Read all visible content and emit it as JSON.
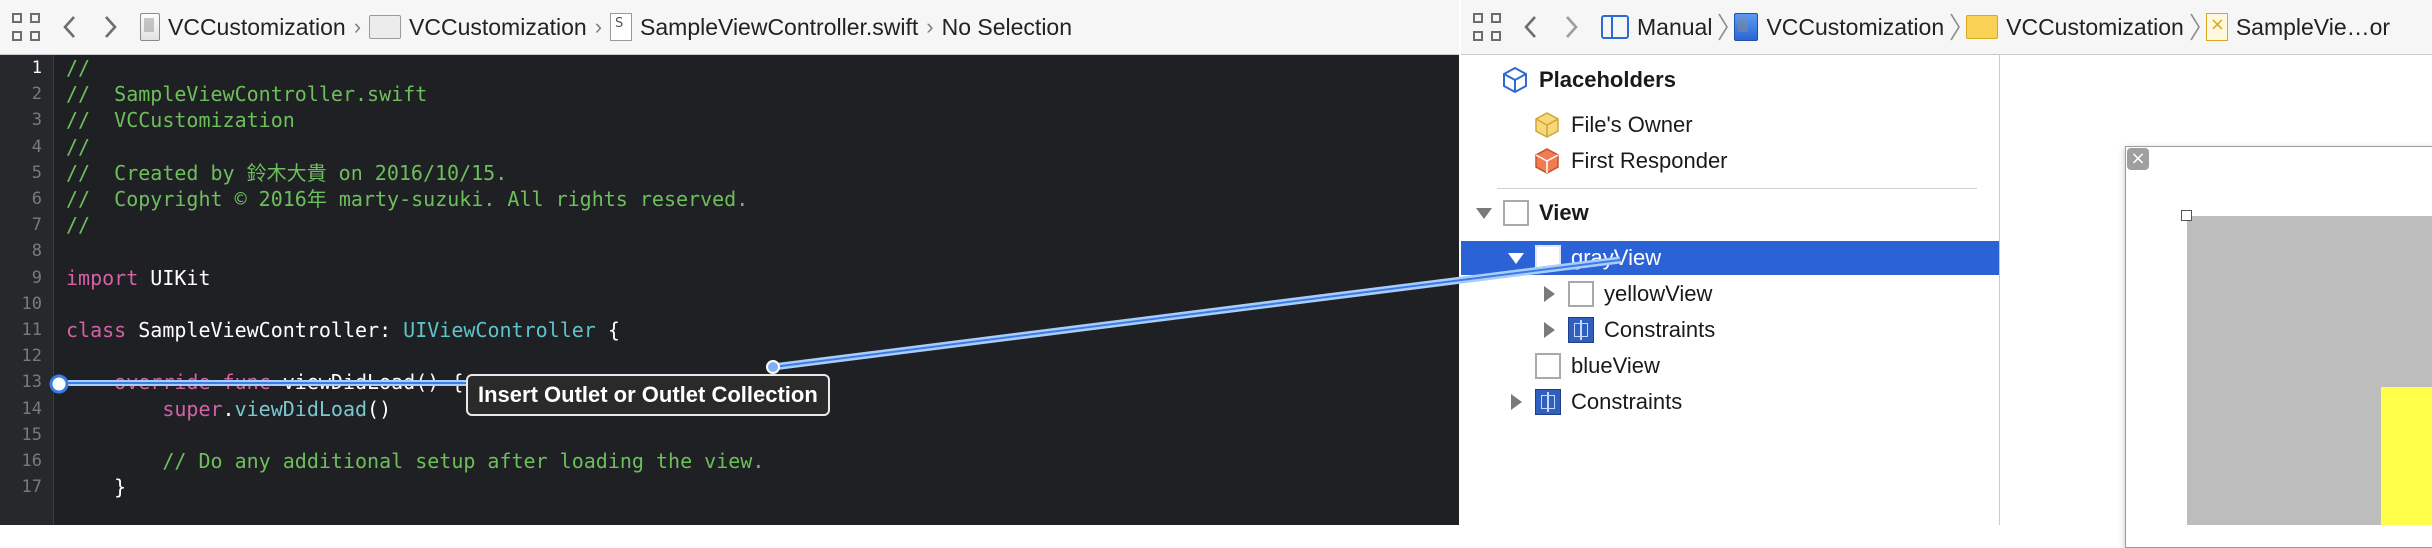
{
  "left_jumpbar": {
    "crumbs": [
      {
        "label": "VCCustomization",
        "icon": "project-icon"
      },
      {
        "label": "VCCustomization",
        "icon": "folder-icon"
      },
      {
        "label": "SampleViewController.swift",
        "icon": "swift-file-icon"
      },
      {
        "label": "No Selection",
        "icon": ""
      }
    ]
  },
  "right_jumpbar": {
    "crumbs": [
      {
        "label": "Manual",
        "icon": "manual-icon"
      },
      {
        "label": "VCCustomization",
        "icon": "project-icon"
      },
      {
        "label": "VCCustomization",
        "icon": "folder-icon"
      },
      {
        "label": "SampleVie…or",
        "icon": "xib-file-icon"
      }
    ]
  },
  "editor": {
    "lines": [
      {
        "n": "1",
        "tokens": [
          {
            "t": "//",
            "c": "comment"
          }
        ]
      },
      {
        "n": "2",
        "tokens": [
          {
            "t": "//  SampleViewController.swift",
            "c": "comment"
          }
        ]
      },
      {
        "n": "3",
        "tokens": [
          {
            "t": "//  VCCustomization",
            "c": "comment"
          }
        ]
      },
      {
        "n": "4",
        "tokens": [
          {
            "t": "//",
            "c": "comment"
          }
        ]
      },
      {
        "n": "5",
        "tokens": [
          {
            "t": "//  Created by 鈴木大貴 on 2016/10/15.",
            "c": "comment"
          }
        ]
      },
      {
        "n": "6",
        "tokens": [
          {
            "t": "//  Copyright © 2016年 marty-suzuki. All rights reserved.",
            "c": "comment"
          }
        ]
      },
      {
        "n": "7",
        "tokens": [
          {
            "t": "//",
            "c": "comment"
          }
        ]
      },
      {
        "n": "8",
        "tokens": []
      },
      {
        "n": "9",
        "tokens": [
          {
            "t": "import",
            "c": "kw"
          },
          {
            "t": " UIKit",
            "c": "plain"
          }
        ]
      },
      {
        "n": "10",
        "tokens": []
      },
      {
        "n": "11",
        "tokens": [
          {
            "t": "class",
            "c": "kw"
          },
          {
            "t": " SampleViewController: ",
            "c": "plain"
          },
          {
            "t": "UIViewController",
            "c": "type"
          },
          {
            "t": " {",
            "c": "plain"
          }
        ]
      },
      {
        "n": "12",
        "tokens": []
      },
      {
        "n": "13",
        "tokens": [
          {
            "t": "    override",
            "c": "kw"
          },
          {
            "t": " ",
            "c": "plain"
          },
          {
            "t": "func",
            "c": "kw"
          },
          {
            "t": " viewDidLoad() {",
            "c": "plain"
          }
        ]
      },
      {
        "n": "14",
        "tokens": [
          {
            "t": "        super",
            "c": "kw"
          },
          {
            "t": ".",
            "c": "plain"
          },
          {
            "t": "viewDidLoad",
            "c": "fn"
          },
          {
            "t": "()",
            "c": "plain"
          }
        ]
      },
      {
        "n": "15",
        "tokens": []
      },
      {
        "n": "16",
        "tokens": [
          {
            "t": "        // Do any additional setup after loading the view.",
            "c": "comment"
          }
        ]
      },
      {
        "n": "17",
        "tokens": [
          {
            "t": "    }",
            "c": "plain"
          }
        ]
      }
    ],
    "current_line": "1"
  },
  "tooltip": {
    "text": "Insert Outlet or Outlet Collection"
  },
  "outline": {
    "placeholders_label": "Placeholders",
    "files_owner": "File's Owner",
    "first_responder": "First Responder",
    "view": "View",
    "gray_view": "grayView",
    "yellow_view": "yellowView",
    "constraints_inner": "Constraints",
    "blue_view": "blueView",
    "constraints_outer": "Constraints"
  },
  "colors": {
    "selection": "#2b63d6",
    "comment": "#6dbf5c",
    "keyword": "#d461a6",
    "type": "#5dc4c9",
    "gray_view": "#bdbdbd",
    "yellow_view": "#ffff4a"
  }
}
